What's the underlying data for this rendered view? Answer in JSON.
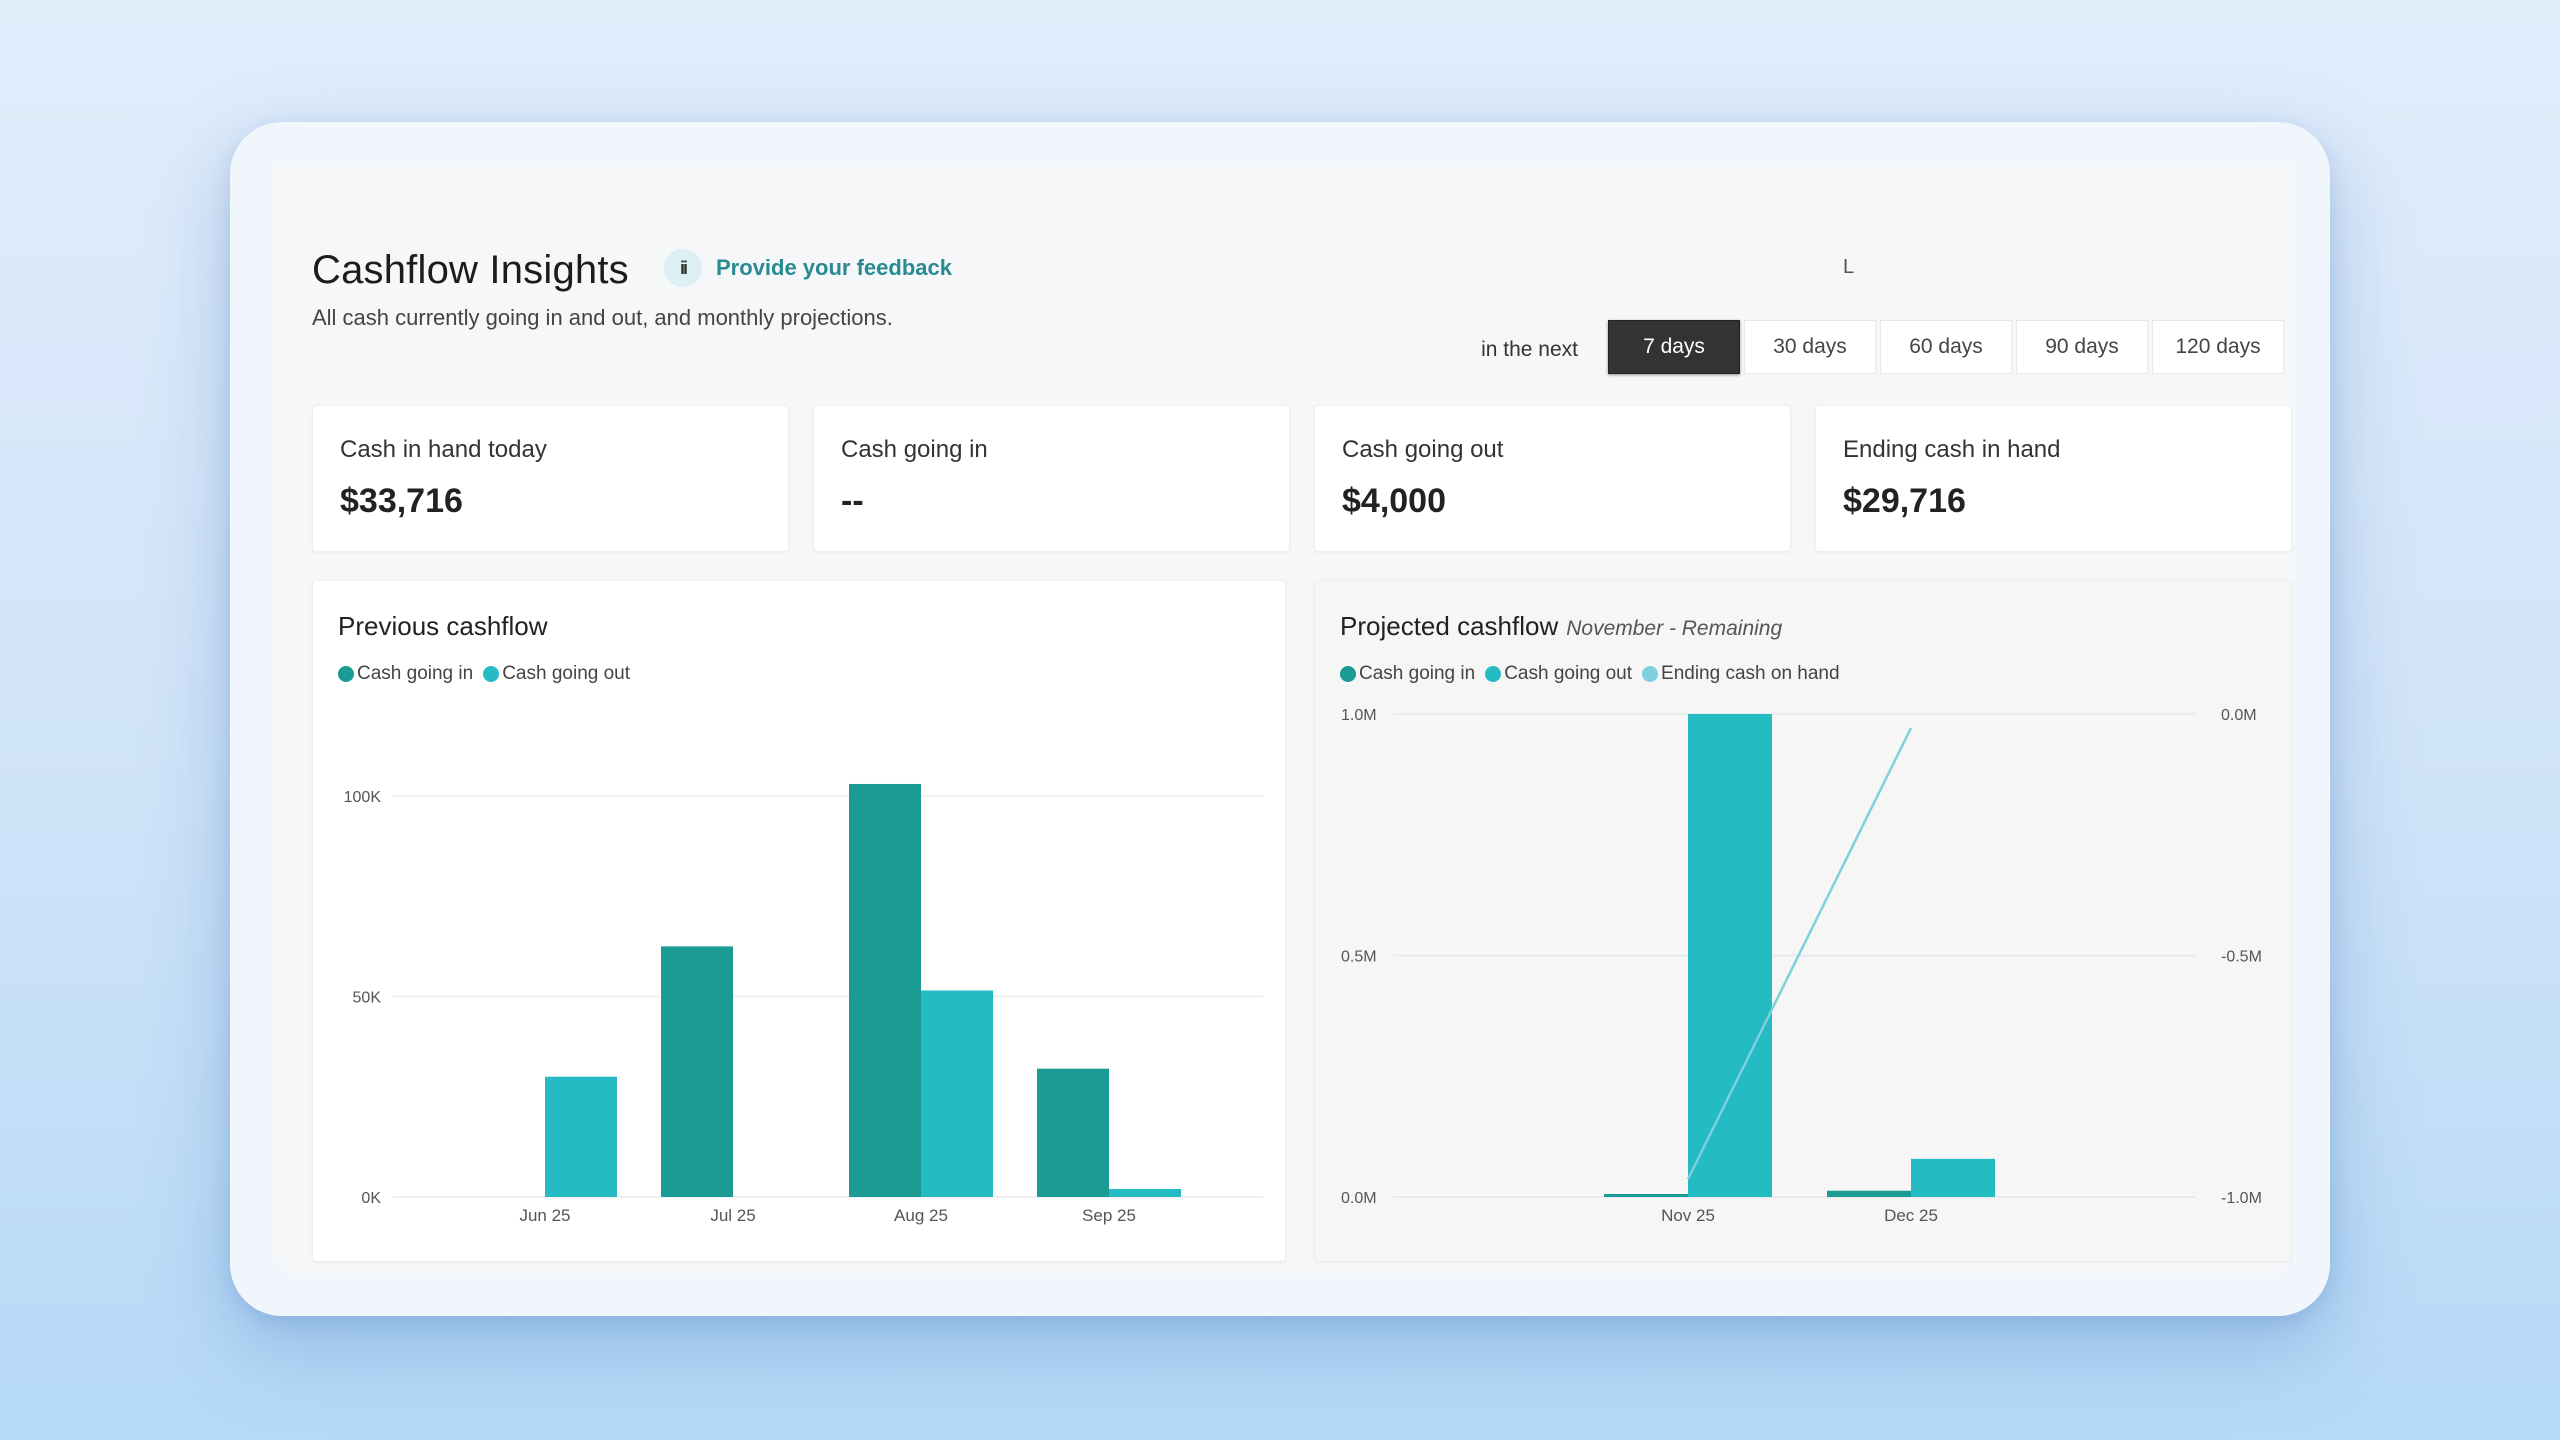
{
  "header": {
    "title": "Cashflow Insights",
    "subtitle": "All cash currently going in and out, and monthly projections.",
    "feedback_icon": "info-badge-icon",
    "feedback_icon_glyph": "ii",
    "feedback_label": "Provide your feedback",
    "stray_text": "L"
  },
  "range": {
    "lead": "in the next",
    "options": [
      {
        "label": "7 days",
        "active": true
      },
      {
        "label": "30 days",
        "active": false
      },
      {
        "label": "60 days",
        "active": false
      },
      {
        "label": "90 days",
        "active": false
      },
      {
        "label": "120 days",
        "active": false
      }
    ]
  },
  "kpis": [
    {
      "label": "Cash in hand today",
      "value": "$33,716"
    },
    {
      "label": "Cash going in",
      "value": "--"
    },
    {
      "label": "Cash going out",
      "value": "$4,000"
    },
    {
      "label": "Ending cash in hand",
      "value": "$29,716"
    }
  ],
  "colors": {
    "cash_in": "#1a9b94",
    "cash_out": "#25bbc3",
    "ending_cash": "#7fd0de",
    "active_button": "#333333",
    "link": "#2a8a93"
  },
  "previous_chart": {
    "title": "Previous cashflow",
    "legend": [
      "Cash going in",
      "Cash going out"
    ]
  },
  "projected_chart": {
    "title": "Projected cashflow",
    "subtitle": "November - Remaining",
    "legend": [
      "Cash going in",
      "Cash going out",
      "Ending cash on hand"
    ]
  },
  "chart_data": [
    {
      "type": "bar",
      "title": "Previous cashflow",
      "categories": [
        "Jun 25",
        "Jul 25",
        "Aug 25",
        "Sep 25"
      ],
      "series": [
        {
          "name": "Cash going in",
          "values": [
            0,
            62500,
            103000,
            32000
          ]
        },
        {
          "name": "Cash going out",
          "values": [
            30000,
            0,
            51500,
            2000
          ]
        }
      ],
      "yticks": [
        "0K",
        "50K",
        "100K"
      ],
      "ylim": [
        0,
        110000
      ],
      "xlabel": "",
      "ylabel": "",
      "grid": true,
      "legend_position": "top-left"
    },
    {
      "type": "bar",
      "title": "Projected cashflow",
      "subtitle": "November - Remaining",
      "categories": [
        "Nov 25",
        "Dec 25"
      ],
      "series": [
        {
          "name": "Cash going in",
          "values": [
            0.005,
            0.013
          ],
          "unit": "M"
        },
        {
          "name": "Cash going out",
          "values": [
            1.0,
            0.079
          ],
          "unit": "M"
        },
        {
          "name": "Ending cash on hand",
          "type": "line",
          "axis": "right",
          "values": [
            -0.963,
            -0.029
          ],
          "unit": "M"
        }
      ],
      "yticks_left": [
        "0.0M",
        "0.5M",
        "1.0M"
      ],
      "yticks_right": [
        "-1.0M",
        "-0.5M",
        "0.0M"
      ],
      "ylim_left": [
        0,
        1.0
      ],
      "ylim_right": [
        -1.0,
        0.0
      ],
      "grid": true,
      "legend_position": "top-left"
    }
  ]
}
